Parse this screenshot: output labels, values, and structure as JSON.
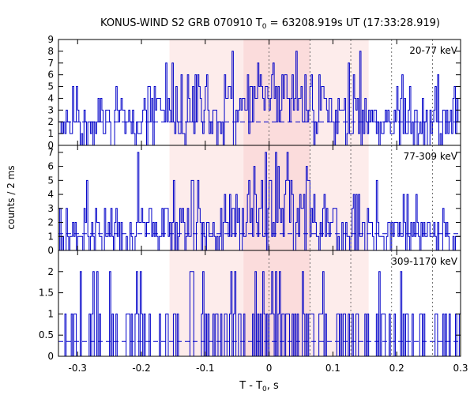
{
  "chart_data": {
    "type": "line",
    "title": "KONUS-WIND S2 GRB 070910 T",
    "title_sub": "0",
    "title_rest": " = 63208.919s UT (17:33:28.919)",
    "xlabel": "T - T",
    "xlabel_sub": "0",
    "xlabel_rest": ", s",
    "ylabel": "counts / 2 ms",
    "xlim": [
      -0.33,
      0.3
    ],
    "x_ticks": [
      -0.3,
      -0.2,
      -0.1,
      0,
      0.1,
      0.2,
      0.3
    ],
    "x_tick_labels": [
      "-0.3",
      "-0.2",
      "-0.1",
      "0",
      "0.1",
      "0.2",
      "0.3"
    ],
    "bin_width": 0.002,
    "line_color": "#0000c8",
    "shaded_regions": [
      {
        "from": -0.156,
        "to": 0.156,
        "color": "#fdeceb"
      },
      {
        "from": -0.04,
        "to": 0.064,
        "color": "#fbdcdc"
      }
    ],
    "vlines": [
      0,
      0.064,
      0.128,
      0.192,
      0.256
    ],
    "panels": [
      {
        "name": "20-77 keV",
        "ylim": [
          0,
          9
        ],
        "y_ticks": [
          0,
          1,
          2,
          3,
          4,
          5,
          6,
          7,
          8,
          9
        ],
        "y_tick_labels": [
          "0",
          "1",
          "2",
          "3",
          "4",
          "5",
          "6",
          "7",
          "8",
          "9"
        ],
        "background": 2.0,
        "seed": 11,
        "profile": [
          [
            -0.33,
            2
          ],
          [
            -0.15,
            2.6
          ],
          [
            -0.04,
            3.2
          ],
          [
            0,
            3.9
          ],
          [
            0.05,
            3.6
          ],
          [
            0.1,
            3.0
          ],
          [
            0.18,
            2.5
          ],
          [
            0.3,
            2.2
          ]
        ]
      },
      {
        "name": "77-309 keV",
        "ylim": [
          0,
          7.5
        ],
        "y_ticks": [
          0,
          1,
          2,
          3,
          4,
          5,
          6,
          7
        ],
        "y_tick_labels": [
          "0",
          "1",
          "2",
          "3",
          "4",
          "5",
          "6",
          "7"
        ],
        "background": 1.2,
        "seed": 29,
        "profile": [
          [
            -0.33,
            1.1
          ],
          [
            -0.15,
            1.6
          ],
          [
            -0.04,
            2.4
          ],
          [
            0,
            3.6
          ],
          [
            0.05,
            3.0
          ],
          [
            0.1,
            2.2
          ],
          [
            0.18,
            1.5
          ],
          [
            0.3,
            1.2
          ]
        ]
      },
      {
        "name": "309-1170 keV",
        "ylim": [
          0,
          2.5
        ],
        "y_ticks": [
          0,
          0.5,
          1,
          1.5,
          2
        ],
        "y_tick_labels": [
          "0",
          "0.5",
          "1",
          "1.5",
          "2"
        ],
        "background": 0.35,
        "seed": 47,
        "profile": [
          [
            -0.33,
            0.33
          ],
          [
            -0.15,
            0.45
          ],
          [
            -0.04,
            0.55
          ],
          [
            0,
            0.75
          ],
          [
            0.05,
            0.65
          ],
          [
            0.1,
            0.5
          ],
          [
            0.18,
            0.4
          ],
          [
            0.3,
            0.35
          ]
        ]
      }
    ]
  }
}
